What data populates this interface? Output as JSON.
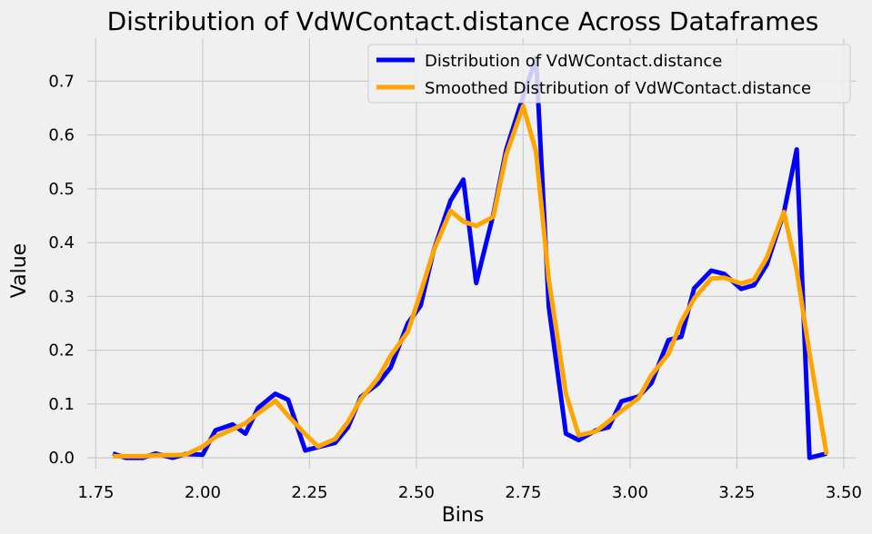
{
  "chart_data": {
    "type": "line",
    "title": "Distribution of VdWContact.distance Across Dataframes",
    "xlabel": "Bins",
    "ylabel": "Value",
    "xlim": [
      1.73,
      3.53
    ],
    "ylim": [
      -0.02,
      0.78
    ],
    "xticks": [
      1.75,
      2.0,
      2.25,
      2.5,
      2.75,
      3.0,
      3.25,
      3.5
    ],
    "xtick_labels": [
      "1.75",
      "2.00",
      "2.25",
      "2.50",
      "2.75",
      "3.00",
      "3.25",
      "3.50"
    ],
    "yticks": [
      0.0,
      0.1,
      0.2,
      0.3,
      0.4,
      0.5,
      0.6,
      0.7
    ],
    "ytick_labels": [
      "0.0",
      "0.1",
      "0.2",
      "0.3",
      "0.4",
      "0.5",
      "0.6",
      "0.7"
    ],
    "grid": true,
    "legend_position": "top-right",
    "x": [
      1.79,
      1.82,
      1.86,
      1.89,
      1.93,
      1.96,
      2.0,
      2.03,
      2.07,
      2.1,
      2.13,
      2.17,
      2.2,
      2.24,
      2.27,
      2.31,
      2.34,
      2.37,
      2.41,
      2.44,
      2.48,
      2.51,
      2.54,
      2.58,
      2.61,
      2.64,
      2.68,
      2.71,
      2.75,
      2.78,
      2.81,
      2.85,
      2.88,
      2.92,
      2.95,
      2.98,
      3.02,
      3.05,
      3.09,
      3.12,
      3.15,
      3.19,
      3.22,
      3.26,
      3.29,
      3.32,
      3.36,
      3.39,
      3.42,
      3.46
    ],
    "series": [
      {
        "name": "Distribution of VdWContact.distance",
        "color": "#0000ff",
        "values": [
          0.008,
          0.0,
          0.0,
          0.008,
          0.0,
          0.007,
          0.006,
          0.051,
          0.062,
          0.045,
          0.093,
          0.119,
          0.108,
          0.014,
          0.02,
          0.028,
          0.057,
          0.113,
          0.138,
          0.168,
          0.25,
          0.283,
          0.384,
          0.478,
          0.517,
          0.325,
          0.452,
          0.572,
          0.672,
          0.743,
          0.28,
          0.045,
          0.033,
          0.051,
          0.057,
          0.105,
          0.114,
          0.139,
          0.219,
          0.225,
          0.315,
          0.348,
          0.342,
          0.314,
          0.321,
          0.359,
          0.456,
          0.573,
          0.0,
          0.008
        ]
      },
      {
        "name": "Smoothed Distribution of VdWContact.distance",
        "color": "#ffa500",
        "values": [
          0.003,
          0.003,
          0.003,
          0.005,
          0.005,
          0.006,
          0.021,
          0.039,
          0.053,
          0.064,
          0.083,
          0.106,
          0.078,
          0.044,
          0.021,
          0.035,
          0.067,
          0.109,
          0.148,
          0.19,
          0.234,
          0.307,
          0.384,
          0.459,
          0.439,
          0.431,
          0.448,
          0.563,
          0.654,
          0.569,
          0.33,
          0.119,
          0.042,
          0.049,
          0.068,
          0.087,
          0.111,
          0.154,
          0.193,
          0.253,
          0.296,
          0.333,
          0.335,
          0.324,
          0.331,
          0.372,
          0.457,
          0.349,
          0.194,
          0.006
        ]
      }
    ]
  }
}
